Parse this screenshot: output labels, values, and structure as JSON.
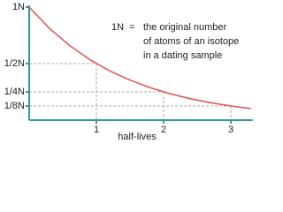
{
  "chart_data": {
    "type": "line",
    "x_label": "half-lives",
    "annotation": {
      "term": "1N",
      "equals": "=",
      "lines": [
        "the original number",
        "of atoms of an isotope",
        "in a dating sample"
      ]
    },
    "x": [
      0,
      0.3,
      0.6,
      0.9,
      1.2,
      1.5,
      1.8,
      2.1,
      2.4,
      2.7,
      3.0,
      3.3
    ],
    "series": [
      {
        "color": "#e05a5a",
        "values": [
          1,
          0.812,
          0.66,
          0.536,
          0.435,
          0.354,
          0.287,
          0.233,
          0.189,
          0.154,
          0.125,
          0.102
        ]
      }
    ],
    "guide_points": {
      "x": [
        1,
        2,
        3
      ],
      "y": [
        0.5,
        0.25,
        0.125
      ]
    },
    "xlim": [
      0,
      3.3
    ],
    "ylim": [
      0,
      1
    ],
    "xticks": [
      1,
      2,
      3
    ],
    "yticks": [
      {
        "value": 0.125,
        "label": "1/8N"
      },
      {
        "value": 0.25,
        "label": "1/4N"
      },
      {
        "value": 0.5,
        "label": "1/2N"
      },
      {
        "value": 1,
        "label": "1N"
      }
    ],
    "axis_color": "#2e9c98",
    "guide_color": "#aaaaaa"
  }
}
